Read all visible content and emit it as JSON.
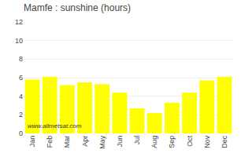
{
  "chart_data": {
    "type": "bar",
    "title": "Mamfe : sunshine (hours)",
    "categories": [
      "Jan",
      "Feb",
      "Mar",
      "Apr",
      "May",
      "Jun",
      "Jul",
      "Aug",
      "Sep",
      "Oct",
      "Nov",
      "Dec"
    ],
    "values": [
      5.8,
      6.1,
      5.2,
      5.5,
      5.3,
      4.4,
      2.7,
      2.2,
      3.3,
      4.4,
      5.7,
      6.1
    ],
    "color": "#ffff00",
    "ylim": [
      0,
      12
    ],
    "yticks": [
      0,
      2,
      4,
      6,
      8,
      10,
      12
    ],
    "grid": true,
    "annotations": [
      "www.allmetsat.com"
    ]
  }
}
